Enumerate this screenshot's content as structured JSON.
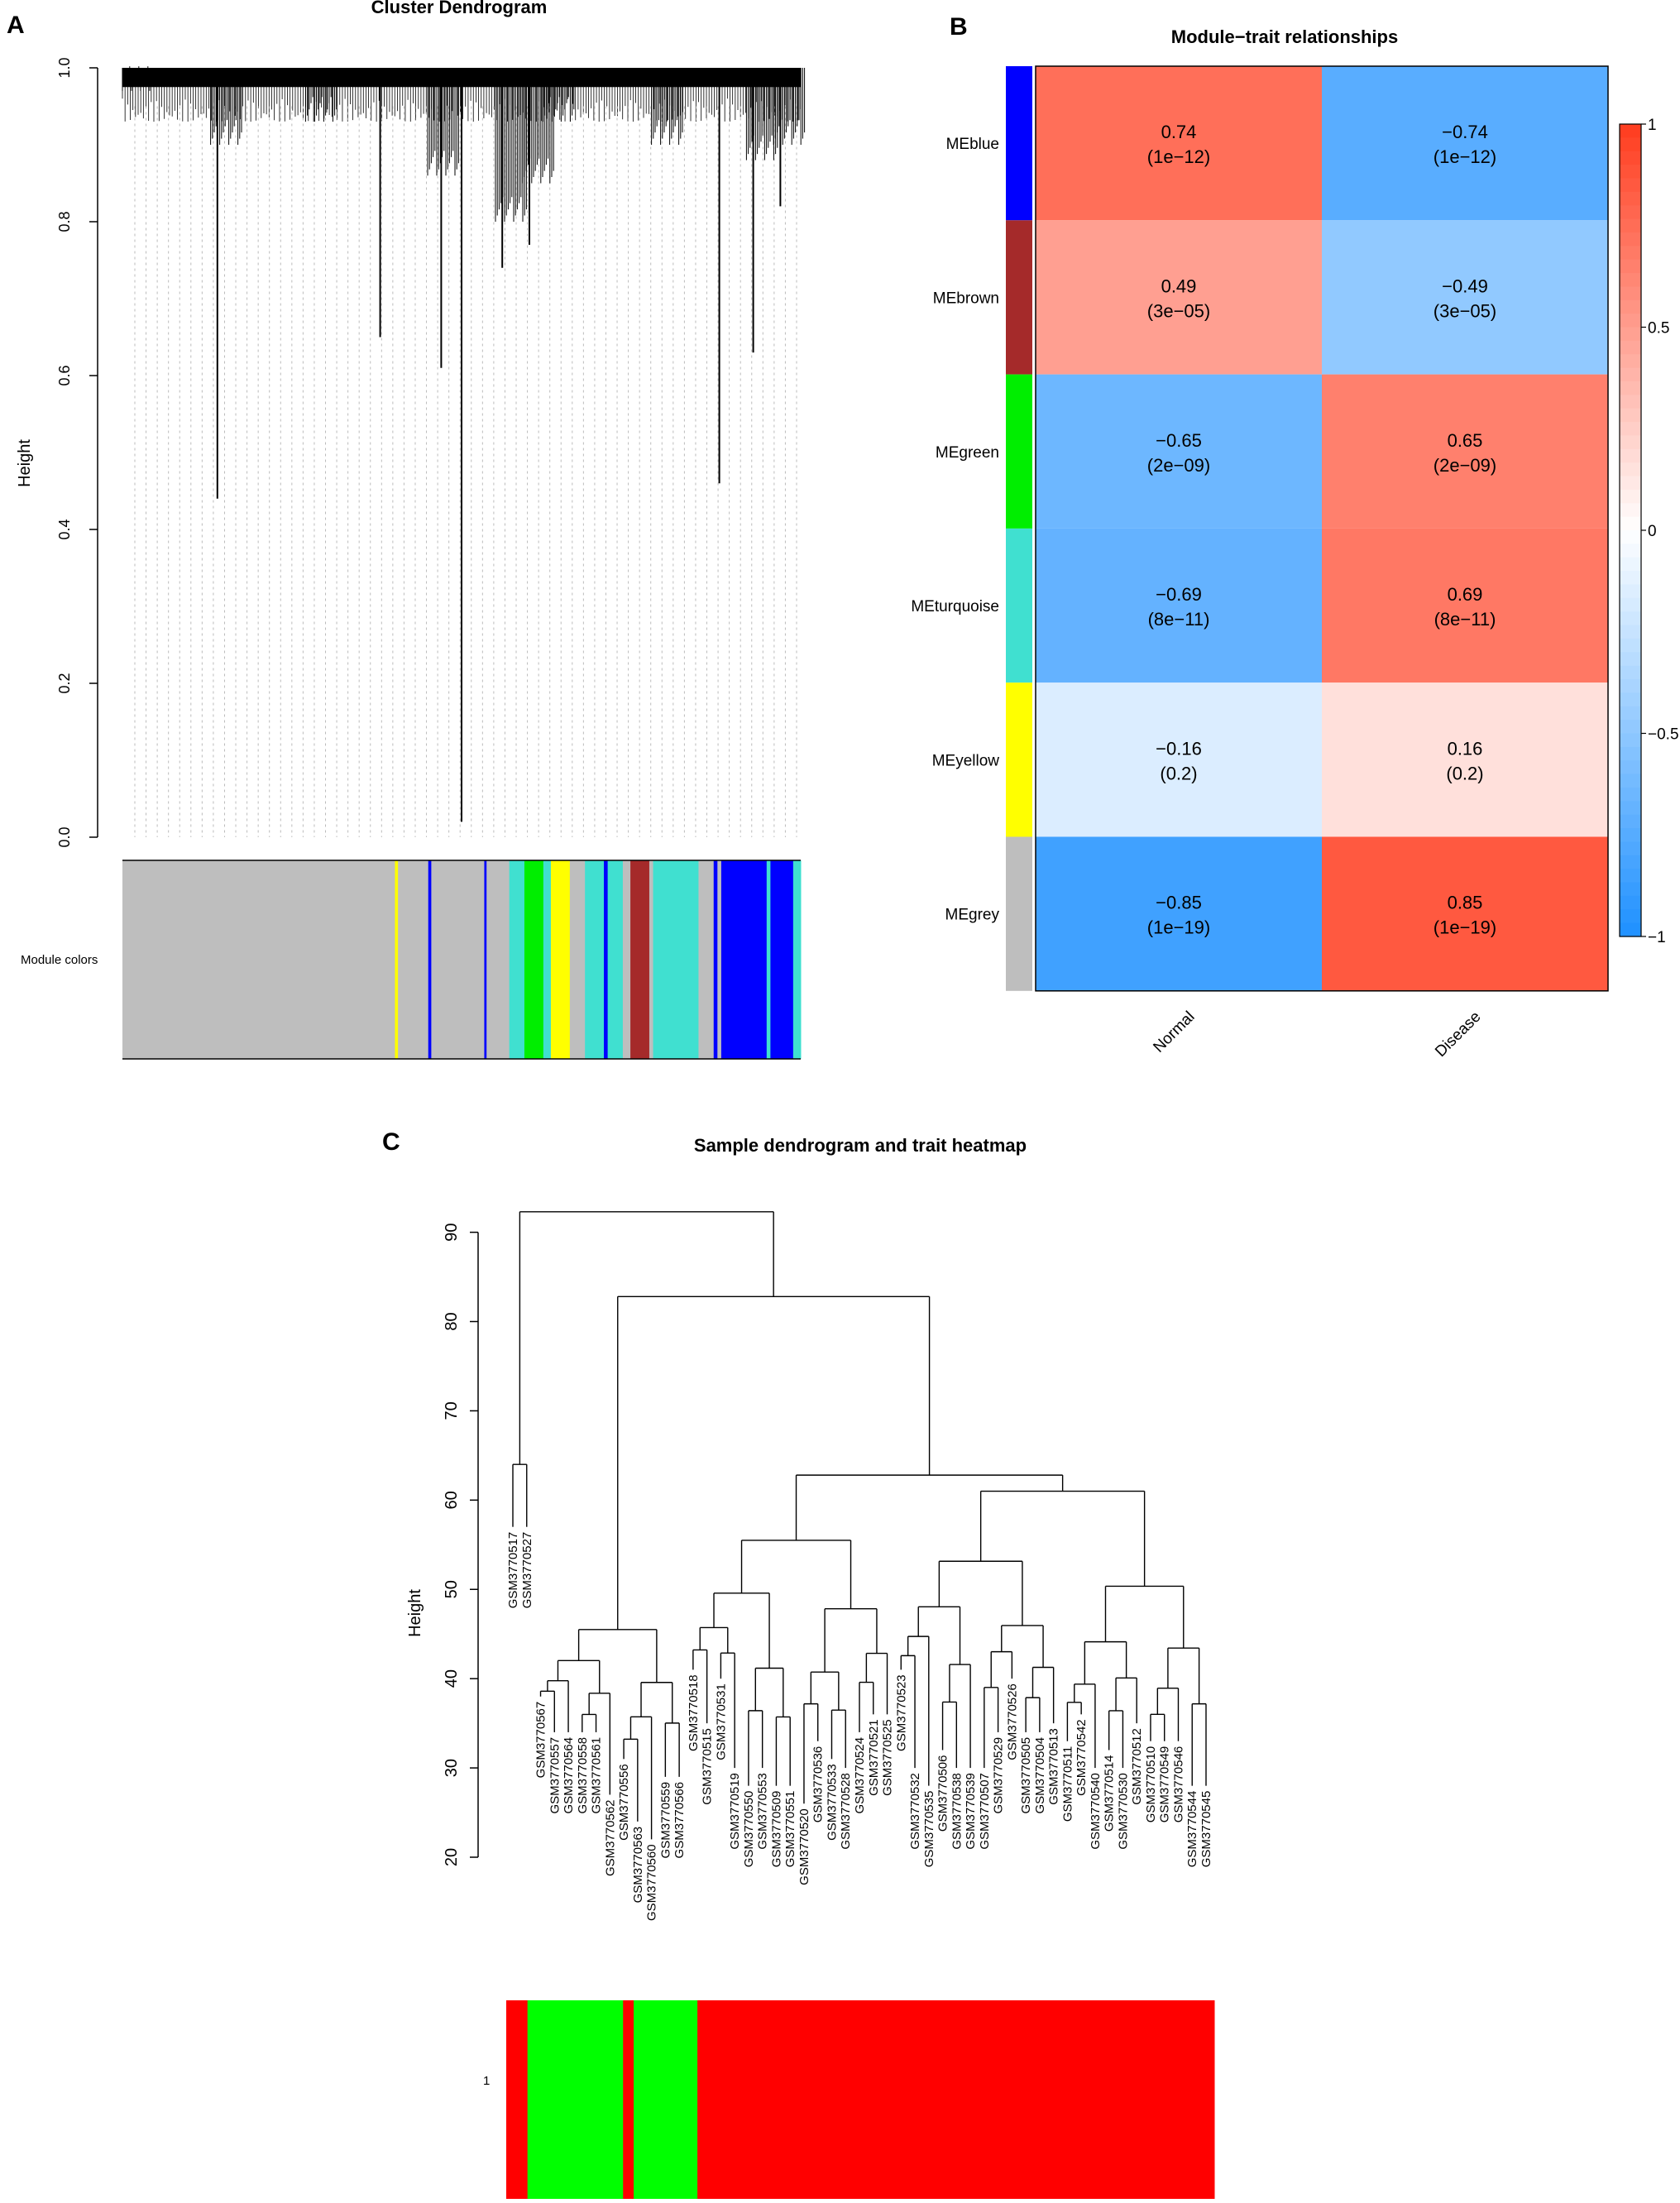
{
  "chart_data": [
    {
      "type": "dendrogram",
      "panel": "A",
      "title": "Cluster Dendrogram",
      "ylabel": "Height",
      "ylim": [
        0,
        1
      ],
      "yticks": [
        "0.0",
        "0.2",
        "0.4",
        "0.6",
        "0.8",
        "1.0"
      ],
      "colorbar_label": "Module colors",
      "module_colors": [
        [
          "grey",
          0.36
        ],
        [
          "yellow",
          0.004
        ],
        [
          "grey",
          0.04
        ],
        [
          "blue",
          0.004
        ],
        [
          "grey",
          0.07
        ],
        [
          "blue",
          0.003
        ],
        [
          "grey",
          0.03
        ],
        [
          "turquoise",
          0.02
        ],
        [
          "green",
          0.025
        ],
        [
          "turquoise",
          0.01
        ],
        [
          "yellow",
          0.025
        ],
        [
          "grey",
          0.02
        ],
        [
          "turquoise",
          0.025
        ],
        [
          "blue",
          0.005
        ],
        [
          "turquoise",
          0.02
        ],
        [
          "grey",
          0.01
        ],
        [
          "brown",
          0.025
        ],
        [
          "grey",
          0.005
        ],
        [
          "turquoise",
          0.06
        ],
        [
          "grey",
          0.02
        ],
        [
          "blue",
          0.005
        ],
        [
          "grey",
          0.005
        ],
        [
          "blue",
          0.06
        ],
        [
          "turquoise",
          0.005
        ],
        [
          "blue",
          0.03
        ],
        [
          "turquoise",
          0.01
        ]
      ],
      "drops": [
        [
          0.14,
          0.44
        ],
        [
          0.38,
          0.65
        ],
        [
          0.47,
          0.61
        ],
        [
          0.5,
          0.02
        ],
        [
          0.56,
          0.74
        ],
        [
          0.6,
          0.77
        ],
        [
          0.88,
          0.46
        ],
        [
          0.93,
          0.63
        ],
        [
          0.97,
          0.82
        ]
      ]
    },
    {
      "type": "heatmap",
      "panel": "B",
      "title": "Module−trait relationships",
      "rows": [
        "MEblue",
        "MEbrown",
        "MEgreen",
        "MEturquoise",
        "MEyellow",
        "MEgrey"
      ],
      "row_colors": [
        "blue",
        "brown",
        "green",
        "turquoise",
        "yellow",
        "grey"
      ],
      "columns": [
        "Normal",
        "Disease"
      ],
      "values": [
        [
          0.74,
          -0.74
        ],
        [
          0.49,
          -0.49
        ],
        [
          -0.65,
          0.65
        ],
        [
          -0.69,
          0.69
        ],
        [
          -0.16,
          0.16
        ],
        [
          -0.85,
          0.85
        ]
      ],
      "labels": [
        [
          [
            "0.74",
            "(1e−12)"
          ],
          [
            "−0.74",
            "(1e−12)"
          ]
        ],
        [
          [
            "0.49",
            "(3e−05)"
          ],
          [
            "−0.49",
            "(3e−05)"
          ]
        ],
        [
          [
            "−0.65",
            "(2e−09)"
          ],
          [
            "0.65",
            "(2e−09)"
          ]
        ],
        [
          [
            "−0.69",
            "(8e−11)"
          ],
          [
            "0.69",
            "(8e−11)"
          ]
        ],
        [
          [
            "−0.16",
            "(0.2)"
          ],
          [
            "0.16",
            "(0.2)"
          ]
        ],
        [
          [
            "−0.85",
            "(1e−19)"
          ],
          [
            "0.85",
            "(1e−19)"
          ]
        ]
      ],
      "colorbar_range": [
        -1,
        1
      ],
      "colorbar_ticks": [
        {
          "value": 1,
          "label": "1"
        },
        {
          "value": 0.5,
          "label": "0.5"
        },
        {
          "value": 0,
          "label": "0"
        },
        {
          "value": -0.5,
          "label": "−0.5"
        },
        {
          "value": -1,
          "label": "−1"
        }
      ]
    },
    {
      "type": "dendrogram",
      "panel": "C",
      "title": "Sample dendrogram and trait heatmap",
      "ylabel": "Height",
      "ylim": [
        20,
        92
      ],
      "yticks": [
        20,
        30,
        40,
        50,
        60,
        70,
        80,
        90
      ],
      "trait_row_label": "1",
      "trait_bar": [
        [
          "red",
          0.03
        ],
        [
          "lime",
          0.135
        ],
        [
          "red",
          0.015
        ],
        [
          "lime",
          0.09
        ],
        [
          "red",
          0.73
        ]
      ],
      "leaves": [
        {
          "id": "GSM3770517",
          "h": 57
        },
        {
          "id": "GSM3770527",
          "h": 57
        },
        {
          "id": "GSM3770567",
          "h": 38
        },
        {
          "id": "GSM3770557",
          "h": 34
        },
        {
          "id": "GSM3770564",
          "h": 34
        },
        {
          "id": "GSM3770558",
          "h": 34
        },
        {
          "id": "GSM3770561",
          "h": 34
        },
        {
          "id": "GSM3770562",
          "h": 27
        },
        {
          "id": "GSM3770556",
          "h": 31
        },
        {
          "id": "GSM3770563",
          "h": 24
        },
        {
          "id": "GSM3770560",
          "h": 22
        },
        {
          "id": "GSM3770559",
          "h": 29
        },
        {
          "id": "GSM3770566",
          "h": 29
        },
        {
          "id": "GSM3770518",
          "h": 41
        },
        {
          "id": "GSM3770515",
          "h": 35
        },
        {
          "id": "GSM3770531",
          "h": 40
        },
        {
          "id": "GSM3770519",
          "h": 30
        },
        {
          "id": "GSM3770550",
          "h": 28
        },
        {
          "id": "GSM3770553",
          "h": 30
        },
        {
          "id": "GSM3770509",
          "h": 28
        },
        {
          "id": "GSM3770551",
          "h": 28
        },
        {
          "id": "GSM3770520",
          "h": 26
        },
        {
          "id": "GSM3770536",
          "h": 33
        },
        {
          "id": "GSM3770533",
          "h": 31
        },
        {
          "id": "GSM3770528",
          "h": 30
        },
        {
          "id": "GSM3770524",
          "h": 34
        },
        {
          "id": "GSM3770521",
          "h": 36
        },
        {
          "id": "GSM3770525",
          "h": 36
        },
        {
          "id": "GSM3770523",
          "h": 41
        },
        {
          "id": "GSM3770532",
          "h": 30
        },
        {
          "id": "GSM3770535",
          "h": 28
        },
        {
          "id": "GSM3770506",
          "h": 32
        },
        {
          "id": "GSM3770538",
          "h": 30
        },
        {
          "id": "GSM3770539",
          "h": 30
        },
        {
          "id": "GSM3770507",
          "h": 30
        },
        {
          "id": "GSM3770529",
          "h": 34
        },
        {
          "id": "GSM3770526",
          "h": 40
        },
        {
          "id": "GSM3770505",
          "h": 34
        },
        {
          "id": "GSM3770504",
          "h": 34
        },
        {
          "id": "GSM3770513",
          "h": 35
        },
        {
          "id": "GSM3770511",
          "h": 33
        },
        {
          "id": "GSM3770542",
          "h": 36
        },
        {
          "id": "GSM3770540",
          "h": 30
        },
        {
          "id": "GSM3770514",
          "h": 32
        },
        {
          "id": "GSM3770530",
          "h": 30
        },
        {
          "id": "GSM3770512",
          "h": 35
        },
        {
          "id": "GSM3770510",
          "h": 33
        },
        {
          "id": "GSM3770549",
          "h": 33
        },
        {
          "id": "GSM3770546",
          "h": 33
        },
        {
          "id": "GSM3770544",
          "h": 28
        },
        {
          "id": "GSM3770545",
          "h": 28
        }
      ]
    }
  ],
  "panel_letters": {
    "a": "A",
    "b": "B",
    "c": "C"
  }
}
